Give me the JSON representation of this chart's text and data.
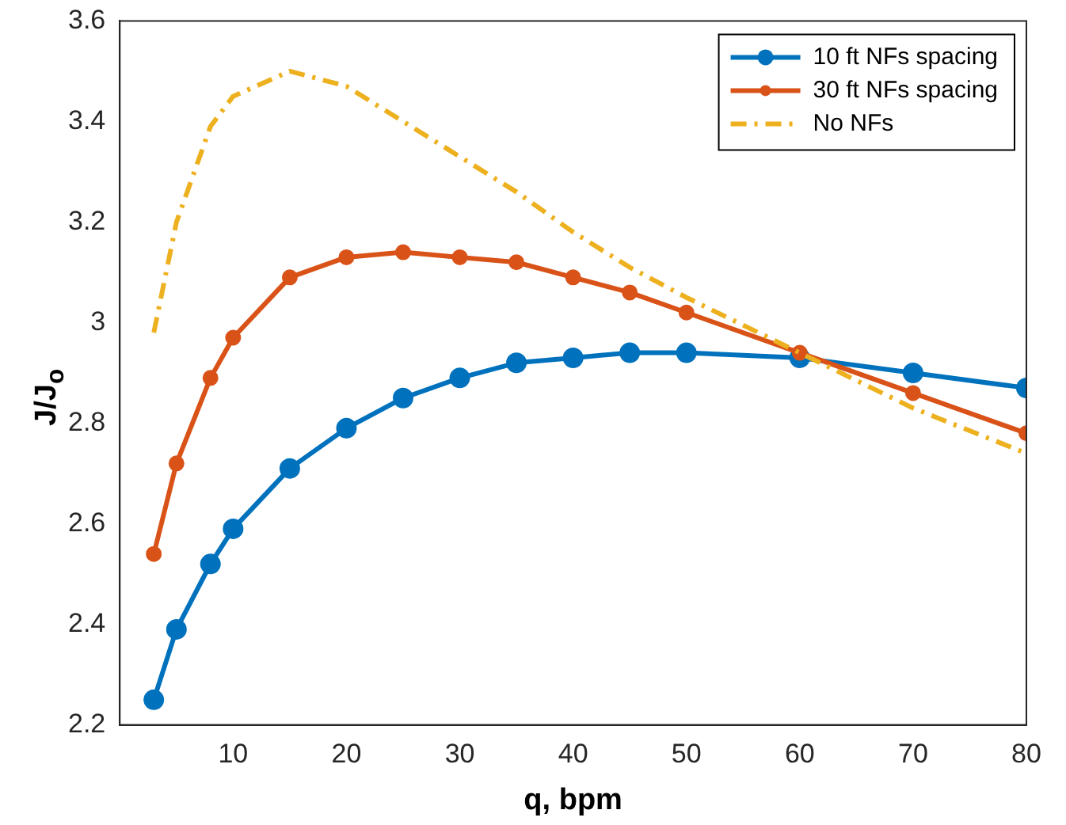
{
  "chart_data": {
    "type": "line",
    "xlabel": "q, bpm",
    "ylabel": "J/J$_{o}$",
    "x": [
      3,
      5,
      8,
      10,
      15,
      20,
      25,
      30,
      35,
      40,
      45,
      50,
      60,
      70,
      80
    ],
    "series": [
      {
        "name": "10 ft NFs spacing",
        "color": "#0072bd",
        "marker": "circle",
        "line_style": "solid",
        "values": [
          2.25,
          2.39,
          2.52,
          2.59,
          2.71,
          2.79,
          2.85,
          2.89,
          2.92,
          2.93,
          2.94,
          2.94,
          2.93,
          2.9,
          2.87
        ]
      },
      {
        "name": "30 ft NFs spacing",
        "color": "#d95319",
        "marker": "circle",
        "line_style": "solid",
        "values": [
          2.54,
          2.72,
          2.89,
          2.97,
          3.09,
          3.13,
          3.14,
          3.13,
          3.12,
          3.09,
          3.06,
          3.02,
          2.94,
          2.86,
          2.78
        ]
      },
      {
        "name": "No NFs",
        "color": "#edb120",
        "marker": "none",
        "line_style": "dashed",
        "values": [
          2.98,
          3.2,
          3.39,
          3.45,
          3.5,
          3.47,
          3.4,
          3.33,
          3.26,
          3.18,
          3.11,
          3.05,
          2.94,
          2.83,
          2.74
        ]
      }
    ],
    "xlim": [
      0,
      80
    ],
    "xticks": [
      10,
      20,
      30,
      40,
      50,
      60,
      70,
      80
    ],
    "ylim": [
      2.2,
      3.6
    ],
    "yticks": [
      2.2,
      2.4,
      2.6,
      2.8,
      3,
      3.2,
      3.4,
      3.6
    ],
    "grid": false,
    "legend": "top right"
  }
}
